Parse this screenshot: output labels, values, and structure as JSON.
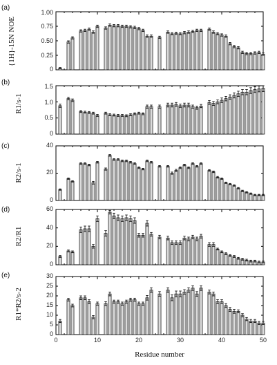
{
  "figure": {
    "xlabel": "Residue number",
    "x_ticks": [
      "0",
      "10",
      "20",
      "30",
      "40",
      "50"
    ],
    "colors": {
      "bar_fill": "#dcdcdc",
      "bar_stroke": "#222222",
      "axis": "#000000"
    }
  },
  "chart_data": [
    {
      "type": "bar",
      "panel": "(a)",
      "ylabel": "{1H}-15N NOE",
      "ylim": [
        0,
        1.0
      ],
      "y_ticks": [
        "0",
        "0.25",
        "0.50",
        "0.75",
        "1.00"
      ],
      "xlim": [
        0,
        50
      ],
      "residues": [
        1,
        3,
        4,
        6,
        7,
        8,
        9,
        10,
        12,
        13,
        14,
        15,
        16,
        17,
        18,
        19,
        20,
        21,
        22,
        23,
        25,
        27,
        28,
        29,
        30,
        31,
        32,
        33,
        34,
        35,
        37,
        38,
        39,
        40,
        41,
        42,
        43,
        44,
        45,
        46,
        47,
        48,
        49,
        50
      ],
      "values": [
        0.03,
        0.48,
        0.55,
        0.67,
        0.68,
        0.7,
        0.65,
        0.75,
        0.72,
        0.77,
        0.76,
        0.76,
        0.75,
        0.75,
        0.74,
        0.73,
        0.71,
        0.68,
        0.58,
        0.58,
        0.56,
        0.65,
        0.62,
        0.63,
        0.62,
        0.64,
        0.65,
        0.66,
        0.68,
        0.68,
        0.7,
        0.65,
        0.62,
        0.6,
        0.58,
        0.45,
        0.4,
        0.38,
        0.3,
        0.28,
        0.28,
        0.29,
        0.3,
        0.27
      ],
      "errors": [
        0.01,
        0.02,
        0.02,
        0.02,
        0.02,
        0.02,
        0.02,
        0.02,
        0.02,
        0.02,
        0.02,
        0.02,
        0.02,
        0.02,
        0.02,
        0.02,
        0.02,
        0.02,
        0.02,
        0.02,
        0.02,
        0.02,
        0.02,
        0.02,
        0.02,
        0.02,
        0.02,
        0.02,
        0.02,
        0.02,
        0.02,
        0.02,
        0.02,
        0.02,
        0.02,
        0.02,
        0.02,
        0.02,
        0.02,
        0.02,
        0.02,
        0.02,
        0.02,
        0.02
      ]
    },
    {
      "type": "bar",
      "panel": "(b)",
      "ylabel": "R1/s-1",
      "ylim": [
        0,
        1.5
      ],
      "y_ticks": [
        "0",
        "0.5",
        "1.0",
        "1.5"
      ],
      "xlim": [
        0,
        50
      ],
      "residues": [
        1,
        3,
        4,
        6,
        7,
        8,
        9,
        10,
        12,
        13,
        14,
        15,
        16,
        17,
        18,
        19,
        20,
        21,
        22,
        23,
        25,
        27,
        28,
        29,
        30,
        31,
        32,
        33,
        34,
        35,
        37,
        38,
        39,
        40,
        41,
        42,
        43,
        44,
        45,
        46,
        47,
        48,
        49,
        50
      ],
      "values": [
        0.88,
        1.1,
        1.05,
        0.7,
        0.68,
        0.67,
        0.65,
        0.58,
        0.65,
        0.6,
        0.59,
        0.58,
        0.58,
        0.57,
        0.6,
        0.63,
        0.65,
        0.63,
        0.85,
        0.85,
        0.85,
        0.9,
        0.9,
        0.92,
        0.88,
        0.9,
        0.9,
        0.85,
        0.82,
        0.87,
        0.98,
        0.95,
        1.0,
        1.05,
        1.1,
        1.15,
        1.2,
        1.25,
        1.3,
        1.3,
        1.35,
        1.38,
        1.4,
        1.42
      ],
      "errors": [
        0.05,
        0.04,
        0.04,
        0.03,
        0.03,
        0.03,
        0.03,
        0.03,
        0.03,
        0.03,
        0.03,
        0.03,
        0.03,
        0.03,
        0.03,
        0.03,
        0.03,
        0.03,
        0.05,
        0.05,
        0.05,
        0.06,
        0.06,
        0.06,
        0.05,
        0.06,
        0.06,
        0.05,
        0.05,
        0.05,
        0.06,
        0.06,
        0.06,
        0.07,
        0.07,
        0.07,
        0.08,
        0.08,
        0.08,
        0.08,
        0.09,
        0.09,
        0.09,
        0.1
      ]
    },
    {
      "type": "bar",
      "panel": "(c)",
      "ylabel": "R2/s-1",
      "ylim": [
        0,
        40
      ],
      "y_ticks": [
        "0",
        "20",
        "40"
      ],
      "xlim": [
        0,
        50
      ],
      "residues": [
        1,
        3,
        4,
        6,
        7,
        8,
        9,
        10,
        12,
        13,
        14,
        15,
        16,
        17,
        18,
        19,
        20,
        21,
        22,
        23,
        25,
        27,
        28,
        29,
        30,
        31,
        32,
        33,
        34,
        35,
        37,
        38,
        39,
        40,
        41,
        42,
        43,
        44,
        45,
        46,
        47,
        48,
        49,
        50
      ],
      "values": [
        8,
        16,
        14,
        27,
        27,
        26,
        13,
        28,
        23,
        33,
        30,
        30,
        29,
        29,
        28,
        27,
        24,
        23,
        29,
        28,
        25,
        25,
        20,
        22,
        24,
        26,
        24,
        27,
        25,
        27,
        22,
        21,
        17,
        16,
        13,
        12,
        11,
        9,
        7,
        6,
        5,
        4,
        4,
        4
      ],
      "errors": [
        0.5,
        0.5,
        0.5,
        0.6,
        0.6,
        0.6,
        1.0,
        0.6,
        0.8,
        0.6,
        0.6,
        0.6,
        0.6,
        0.6,
        0.6,
        0.6,
        0.6,
        0.6,
        0.6,
        0.6,
        0.6,
        0.6,
        0.8,
        0.8,
        0.6,
        0.6,
        0.6,
        0.6,
        0.6,
        0.6,
        0.6,
        0.6,
        0.6,
        0.5,
        0.5,
        0.5,
        0.5,
        0.5,
        0.5,
        0.5,
        0.5,
        0.5,
        0.5,
        0.5
      ]
    },
    {
      "type": "bar",
      "panel": "(d)",
      "ylabel": "R2/R1",
      "ylim": [
        0,
        60
      ],
      "y_ticks": [
        "0",
        "20",
        "40",
        "60"
      ],
      "xlim": [
        0,
        50
      ],
      "residues": [
        1,
        3,
        4,
        6,
        7,
        8,
        9,
        10,
        12,
        13,
        14,
        15,
        16,
        17,
        18,
        19,
        20,
        21,
        22,
        23,
        25,
        27,
        28,
        29,
        30,
        31,
        32,
        33,
        34,
        35,
        37,
        38,
        39,
        40,
        41,
        42,
        43,
        44,
        45,
        46,
        47,
        48,
        49,
        50
      ],
      "values": [
        9,
        15,
        14,
        38,
        39,
        39,
        20,
        50,
        34,
        57,
        53,
        51,
        50,
        51,
        50,
        48,
        32,
        32,
        45,
        33,
        30,
        29,
        24,
        24,
        24,
        29,
        28,
        30,
        28,
        31,
        22,
        22,
        17,
        14,
        12,
        10,
        9,
        7,
        6,
        5,
        4,
        4,
        3,
        3
      ],
      "errors": [
        1,
        1,
        1,
        3,
        3,
        3,
        2,
        3,
        3,
        2,
        3,
        3,
        3,
        3,
        3,
        3,
        2,
        2,
        3,
        2,
        2,
        2,
        2,
        2,
        2,
        2,
        2,
        2,
        2,
        2,
        2,
        2,
        1,
        1,
        1,
        1,
        1,
        1,
        1,
        1,
        1,
        1,
        1,
        1
      ]
    },
    {
      "type": "bar",
      "panel": "(e)",
      "ylabel": "R1*R2/s-2",
      "ylim": [
        0,
        30
      ],
      "y_ticks": [
        "0",
        "5",
        "10",
        "15",
        "20",
        "25",
        "30"
      ],
      "xlim": [
        0,
        50
      ],
      "residues": [
        1,
        3,
        4,
        6,
        7,
        8,
        9,
        10,
        12,
        13,
        14,
        15,
        16,
        17,
        18,
        19,
        20,
        21,
        22,
        23,
        25,
        27,
        28,
        29,
        30,
        31,
        32,
        33,
        34,
        35,
        37,
        38,
        39,
        40,
        41,
        42,
        43,
        44,
        45,
        46,
        47,
        48,
        49,
        50
      ],
      "values": [
        7,
        18,
        15,
        19,
        19,
        17,
        9,
        16,
        16,
        21,
        17,
        17,
        16,
        17,
        18,
        18,
        16,
        16,
        19,
        23,
        21,
        23,
        19,
        21,
        21,
        22,
        23,
        24,
        21,
        24,
        22,
        21,
        17,
        17,
        15,
        13,
        12,
        12,
        10,
        8,
        7,
        7,
        6,
        6
      ],
      "errors": [
        0.8,
        0.7,
        0.7,
        1.0,
        1.0,
        1.0,
        0.8,
        0.8,
        1.0,
        1.0,
        0.8,
        0.8,
        0.8,
        0.8,
        0.8,
        0.8,
        0.8,
        0.8,
        1.2,
        1.2,
        1.2,
        1.2,
        1.5,
        1.5,
        1.5,
        1.2,
        1.2,
        1.2,
        1.2,
        1.2,
        1.0,
        1.0,
        1.0,
        1.0,
        1.0,
        1.0,
        1.0,
        0.8,
        0.8,
        0.8,
        0.8,
        0.8,
        0.8,
        0.8
      ]
    }
  ]
}
